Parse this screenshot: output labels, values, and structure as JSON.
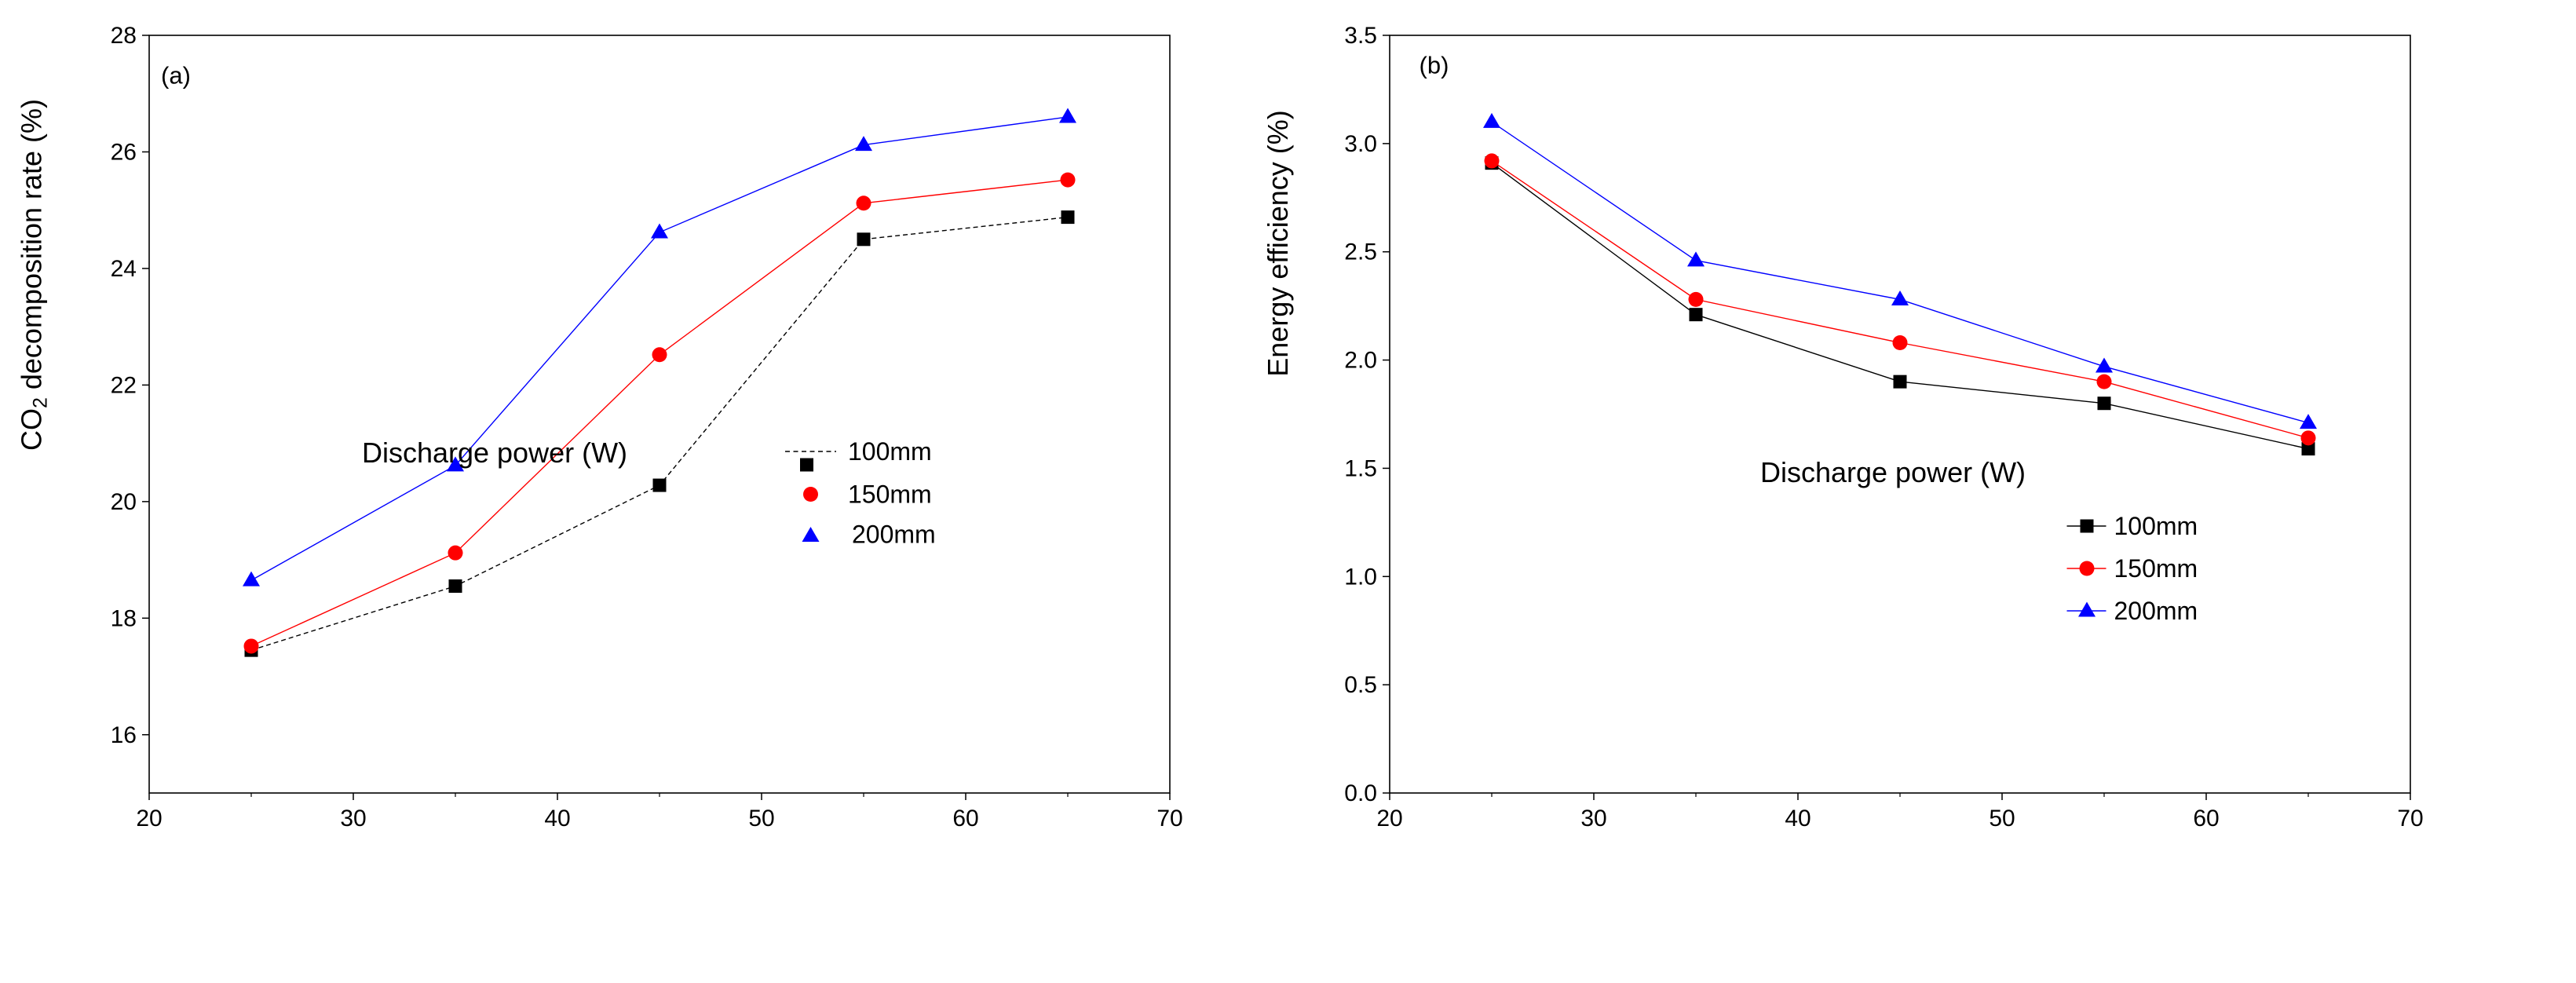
{
  "chart_data": [
    {
      "type": "line",
      "panel_label": "(a)",
      "xlabel": "Discharge power (W)",
      "ylabel_parts": [
        "CO",
        "2",
        " decomposition rate (%)"
      ],
      "xlim": [
        20,
        70
      ],
      "ylim": [
        15,
        28
      ],
      "xticks": [
        20,
        30,
        40,
        50,
        60,
        70
      ],
      "yticks": [
        16,
        18,
        20,
        22,
        24,
        26,
        28
      ],
      "ytick_decimals": 0,
      "legend_position": "center-right",
      "x": [
        25,
        35,
        45,
        55,
        65
      ],
      "series": [
        {
          "name": "100mm",
          "color": "#000000",
          "marker": "square",
          "line_style": "dashed",
          "values": [
            17.45,
            18.55,
            20.28,
            24.5,
            24.88
          ]
        },
        {
          "name": "150mm",
          "color": "#ff0000",
          "marker": "circle",
          "line_style": "solid",
          "values": [
            17.52,
            19.12,
            22.52,
            25.12,
            25.52
          ]
        },
        {
          "name": "200mm",
          "color": "#0000ff",
          "marker": "triangle",
          "line_style": "solid",
          "values": [
            18.65,
            20.62,
            24.62,
            26.12,
            26.6
          ]
        }
      ]
    },
    {
      "type": "line",
      "panel_label": "(b)",
      "xlabel": "Discharge power (W)",
      "ylabel": "Energy efficiency (%)",
      "xlim": [
        20,
        70
      ],
      "ylim": [
        0.0,
        3.5
      ],
      "xticks": [
        20,
        30,
        40,
        50,
        60,
        70
      ],
      "yticks": [
        0.0,
        0.5,
        1.0,
        1.5,
        2.0,
        2.5,
        3.0,
        3.5
      ],
      "ytick_decimals": 1,
      "legend_position": "bottom-right",
      "x": [
        25,
        35,
        45,
        55,
        65
      ],
      "series": [
        {
          "name": "100mm",
          "color": "#000000",
          "marker": "square",
          "line_style": "solid",
          "values": [
            2.91,
            2.21,
            1.9,
            1.8,
            1.59
          ]
        },
        {
          "name": "150mm",
          "color": "#ff0000",
          "marker": "circle",
          "line_style": "solid",
          "values": [
            2.92,
            2.28,
            2.08,
            1.9,
            1.64
          ]
        },
        {
          "name": "200mm",
          "color": "#0000ff",
          "marker": "triangle",
          "line_style": "solid",
          "values": [
            3.1,
            2.46,
            2.28,
            1.97,
            1.71
          ]
        }
      ]
    }
  ]
}
